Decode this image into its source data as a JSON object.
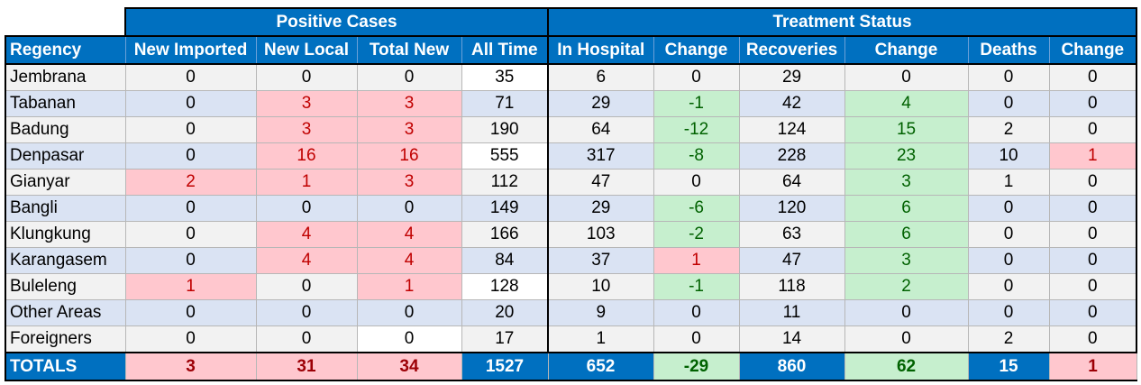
{
  "groups": {
    "positive": "Positive Cases",
    "treatment": "Treatment Status"
  },
  "columns": [
    "Regency",
    "New Imported",
    "New Local",
    "Total New",
    "All Time",
    "In Hospital",
    "Change",
    "Recoveries",
    "Change",
    "Deaths",
    "Change"
  ],
  "rows": [
    [
      "Jembrana",
      "0",
      "0",
      "0",
      "35",
      "6",
      "0",
      "29",
      "0",
      "0",
      "0"
    ],
    [
      "Tabanan",
      "0",
      "3",
      "3",
      "71",
      "29",
      "-1",
      "42",
      "4",
      "0",
      "0"
    ],
    [
      "Badung",
      "0",
      "3",
      "3",
      "190",
      "64",
      "-12",
      "124",
      "15",
      "2",
      "0"
    ],
    [
      "Denpasar",
      "0",
      "16",
      "16",
      "555",
      "317",
      "-8",
      "228",
      "23",
      "10",
      "1"
    ],
    [
      "Gianyar",
      "2",
      "1",
      "3",
      "112",
      "47",
      "0",
      "64",
      "3",
      "1",
      "0"
    ],
    [
      "Bangli",
      "0",
      "0",
      "0",
      "149",
      "29",
      "-6",
      "120",
      "6",
      "0",
      "0"
    ],
    [
      "Klungkung",
      "0",
      "4",
      "4",
      "166",
      "103",
      "-2",
      "63",
      "6",
      "0",
      "0"
    ],
    [
      "Karangasem",
      "0",
      "4",
      "4",
      "84",
      "37",
      "1",
      "47",
      "3",
      "0",
      "0"
    ],
    [
      "Buleleng",
      "1",
      "0",
      "1",
      "128",
      "10",
      "-1",
      "118",
      "2",
      "0",
      "0"
    ],
    [
      "Other Areas",
      "0",
      "0",
      "0",
      "20",
      "9",
      "0",
      "11",
      "0",
      "0",
      "0"
    ],
    [
      "Foreigners",
      "0",
      "0",
      "0",
      "17",
      "1",
      "0",
      "14",
      "0",
      "2",
      "0"
    ]
  ],
  "totals": [
    "TOTALS",
    "3",
    "31",
    "34",
    "1527",
    "652",
    "-29",
    "860",
    "62",
    "15",
    "1"
  ],
  "highlights": {
    "red": [
      [
        1,
        2
      ],
      [
        1,
        3
      ],
      [
        2,
        2
      ],
      [
        2,
        3
      ],
      [
        3,
        2
      ],
      [
        3,
        3
      ],
      [
        3,
        10
      ],
      [
        4,
        1
      ],
      [
        4,
        2
      ],
      [
        4,
        3
      ],
      [
        6,
        2
      ],
      [
        6,
        3
      ],
      [
        7,
        2
      ],
      [
        7,
        3
      ],
      [
        7,
        6
      ],
      [
        8,
        1
      ],
      [
        8,
        3
      ]
    ],
    "green": [
      [
        1,
        6
      ],
      [
        1,
        8
      ],
      [
        2,
        6
      ],
      [
        2,
        8
      ],
      [
        3,
        6
      ],
      [
        3,
        8
      ],
      [
        4,
        8
      ],
      [
        5,
        6
      ],
      [
        5,
        8
      ],
      [
        6,
        6
      ],
      [
        6,
        8
      ],
      [
        7,
        8
      ],
      [
        8,
        6
      ],
      [
        8,
        8
      ]
    ],
    "white": [
      [
        0,
        4
      ],
      [
        3,
        4
      ],
      [
        8,
        4
      ],
      [
        10,
        3
      ]
    ]
  },
  "totals_highlights": {
    "red": [
      1,
      2,
      3,
      10
    ],
    "green": [
      6,
      8
    ]
  },
  "colors": {
    "header_blue": "#0070c0",
    "row_gray": "#f2f2f2",
    "row_blue": "#dae3f3",
    "bad_fill": "#ffc7ce",
    "bad_text": "#c00000",
    "good_fill": "#c6efce",
    "good_text": "#006100"
  }
}
